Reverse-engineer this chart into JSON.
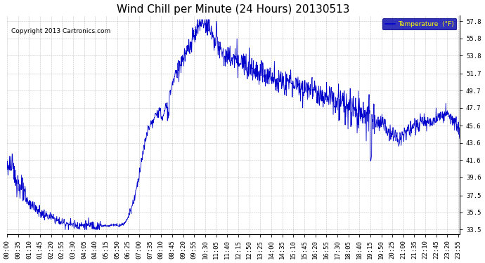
{
  "title": "Wind Chill per Minute (24 Hours) 20130513",
  "copyright": "Copyright 2013 Cartronics.com",
  "legend_label": "Temperature  (°F)",
  "yticks": [
    33.5,
    35.5,
    37.5,
    39.6,
    41.6,
    43.6,
    45.6,
    47.7,
    49.7,
    51.7,
    53.8,
    55.8,
    57.8
  ],
  "ylim": [
    33.0,
    58.5
  ],
  "line_color": "#0000CC",
  "bg_color": "#FFFFFF",
  "plot_bg_color": "#FFFFFF",
  "grid_color": "#BBBBBB",
  "title_fontsize": 11,
  "tick_fontsize": 6.5,
  "legend_bg": "#0000AA",
  "legend_text_color": "#FFFF00",
  "figsize": [
    6.9,
    3.75
  ],
  "dpi": 100
}
